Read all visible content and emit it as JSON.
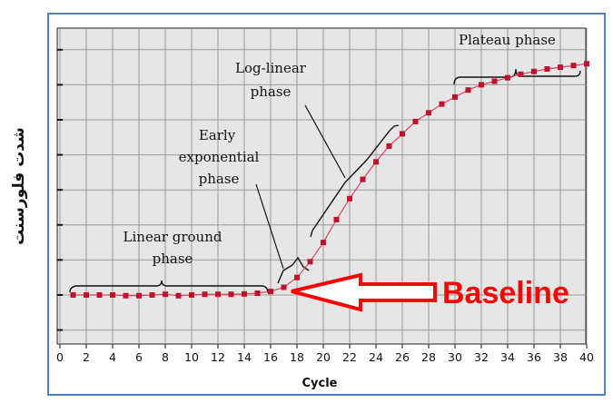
{
  "chart_data": {
    "type": "line",
    "title": "",
    "xlabel": "Cycle",
    "ylabel": "شدت فلورسنت",
    "xlim": [
      0,
      40
    ],
    "ylim": [
      0,
      8
    ],
    "x_ticks": [
      "0",
      "2",
      "4",
      "6",
      "8",
      "10",
      "12",
      "14",
      "16",
      "18",
      "20",
      "22",
      "24",
      "26",
      "28",
      "30",
      "32",
      "34",
      "36",
      "38",
      "40"
    ],
    "grid": true,
    "marker_color": "#c0102a",
    "line_color": "#e0405a",
    "series": [
      {
        "x": [
          1,
          2,
          3,
          4,
          5,
          6,
          7,
          8,
          9,
          10,
          11,
          12,
          13,
          14,
          15,
          16,
          17,
          18,
          19,
          20,
          21,
          22,
          23,
          24,
          25,
          26,
          27,
          28,
          29,
          30,
          31,
          32,
          33,
          34,
          35,
          36,
          37,
          38,
          39,
          40
        ],
        "y": [
          1.0,
          1.0,
          1.0,
          1.0,
          0.98,
          0.98,
          1.0,
          1.02,
          0.98,
          1.0,
          1.02,
          1.02,
          1.02,
          1.03,
          1.05,
          1.1,
          1.22,
          1.5,
          1.95,
          2.5,
          3.15,
          3.75,
          4.3,
          4.8,
          5.25,
          5.6,
          5.95,
          6.2,
          6.45,
          6.65,
          6.85,
          7.0,
          7.1,
          7.2,
          7.3,
          7.38,
          7.45,
          7.5,
          7.55,
          7.6
        ]
      }
    ],
    "annotations": [
      {
        "text": "Plateau phase"
      },
      {
        "text_lines": [
          "Log-linear",
          "phase"
        ]
      },
      {
        "text_lines": [
          "Early",
          "exponential",
          "phase"
        ]
      },
      {
        "text_lines": [
          "Linear ground",
          "phase"
        ]
      }
    ],
    "callout": {
      "text": "Baseline",
      "color": "#ff0000"
    }
  }
}
